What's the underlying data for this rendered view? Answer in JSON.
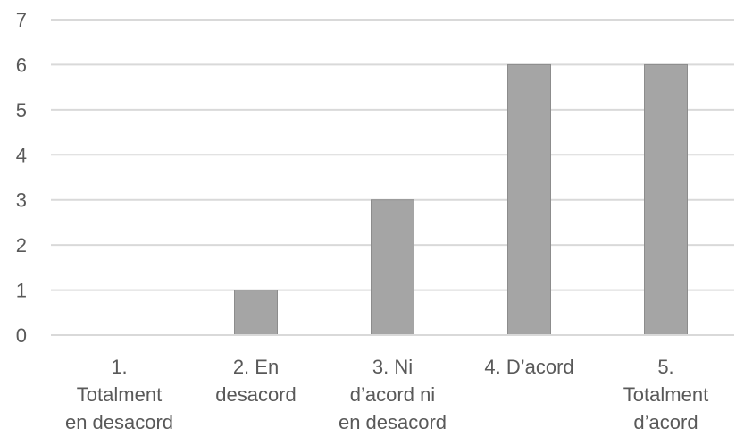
{
  "chart_data": {
    "type": "bar",
    "title": "",
    "xlabel": "",
    "ylabel": "",
    "categories": [
      [
        "1.",
        "Totalment",
        "en desacord"
      ],
      [
        "2.  En",
        "desacord"
      ],
      [
        "3.  Ni",
        "d’acord ni",
        "en desacord"
      ],
      [
        "4.  D’acord"
      ],
      [
        "5.",
        "Totalment",
        "d’acord"
      ]
    ],
    "values": [
      0,
      1,
      3,
      6,
      6
    ],
    "ylim": [
      0,
      7
    ],
    "yticks": [
      0,
      1,
      2,
      3,
      4,
      5,
      6,
      7
    ],
    "grid": true,
    "legend": "none",
    "bar_color": "#A5A5A5",
    "bar_edge_color": "#8C8C8C",
    "grid_color": "#D9D9D9",
    "text_color": "#595959"
  }
}
